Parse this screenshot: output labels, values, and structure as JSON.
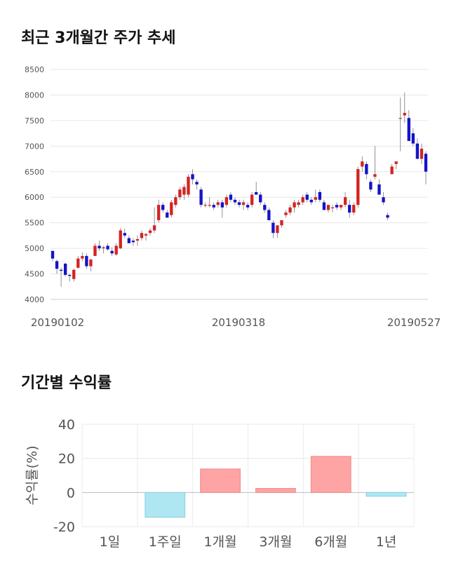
{
  "page": {
    "title_price_trend": "최근 3개월간 주가 추세",
    "title_returns": "기간별 수익률"
  },
  "colors": {
    "up": "#d42424",
    "down": "#1414c8",
    "positive": "#ffa4a4",
    "negative": "#aee6f2"
  },
  "chart_data": [
    {
      "type": "candlestick",
      "ylim": [
        4000,
        8500
      ],
      "yticks": [
        4000,
        4500,
        5000,
        5500,
        6000,
        6500,
        7000,
        7500,
        8000,
        8500
      ],
      "xtick_labels": [
        "20190102",
        "20190318",
        "20190527"
      ],
      "grid": true,
      "ohlc": [
        [
          4950,
          4950,
          4750,
          4800
        ],
        [
          4750,
          4780,
          4500,
          4600
        ],
        [
          4580,
          4620,
          4250,
          4560
        ],
        [
          4700,
          4720,
          4450,
          4480
        ],
        [
          4480,
          4500,
          4350,
          4460
        ],
        [
          4400,
          4600,
          4350,
          4580
        ],
        [
          4620,
          4850,
          4600,
          4800
        ],
        [
          4800,
          4920,
          4750,
          4850
        ],
        [
          4850,
          4900,
          4600,
          4650
        ],
        [
          4650,
          4800,
          4550,
          4780
        ],
        [
          4850,
          5100,
          4850,
          5050
        ],
        [
          5050,
          5150,
          4950,
          5000
        ],
        [
          5000,
          5050,
          4900,
          5020
        ],
        [
          5050,
          5100,
          4950,
          4980
        ],
        [
          4950,
          5020,
          4850,
          4900
        ],
        [
          4880,
          5100,
          4850,
          5050
        ],
        [
          5000,
          5400,
          4980,
          5350
        ],
        [
          5300,
          5380,
          5200,
          5250
        ],
        [
          5200,
          5250,
          5100,
          5100
        ],
        [
          5150,
          5200,
          5050,
          5120
        ],
        [
          5150,
          5250,
          5050,
          5180
        ],
        [
          5200,
          5350,
          5150,
          5300
        ],
        [
          5250,
          5300,
          5150,
          5280
        ],
        [
          5300,
          5400,
          5250,
          5350
        ],
        [
          5350,
          5800,
          5300,
          5450
        ],
        [
          5550,
          5950,
          5500,
          5850
        ],
        [
          5850,
          5900,
          5700,
          5750
        ],
        [
          5700,
          5750,
          5600,
          5600
        ],
        [
          5650,
          5950,
          5600,
          5900
        ],
        [
          5850,
          6050,
          5800,
          6000
        ],
        [
          6000,
          6200,
          5950,
          6150
        ],
        [
          6050,
          6250,
          5950,
          6200
        ],
        [
          6050,
          6450,
          6000,
          6400
        ],
        [
          6450,
          6550,
          6250,
          6350
        ],
        [
          6300,
          6350,
          6150,
          6250
        ],
        [
          6150,
          6200,
          5800,
          5850
        ],
        [
          5850,
          5900,
          5800,
          5850
        ],
        [
          5850,
          6000,
          5800,
          5850
        ],
        [
          5850,
          5900,
          5750,
          5800
        ],
        [
          5850,
          5950,
          5800,
          5900
        ],
        [
          5900,
          5950,
          5600,
          5800
        ],
        [
          5850,
          6050,
          5800,
          6000
        ],
        [
          6050,
          6100,
          5900,
          5950
        ],
        [
          5950,
          6000,
          5850,
          5900
        ],
        [
          5900,
          5950,
          5800,
          5850
        ],
        [
          5850,
          5950,
          5750,
          5900
        ],
        [
          5850,
          5900,
          5750,
          5800
        ],
        [
          5850,
          6100,
          5800,
          6050
        ],
        [
          6100,
          6300,
          6050,
          6050
        ],
        [
          6050,
          6100,
          5850,
          5900
        ],
        [
          5850,
          5900,
          5700,
          5750
        ],
        [
          5750,
          5800,
          5550,
          5550
        ],
        [
          5500,
          5550,
          5200,
          5300
        ],
        [
          5300,
          5450,
          5200,
          5450
        ],
        [
          5450,
          5550,
          5400,
          5550
        ],
        [
          5650,
          5750,
          5600,
          5700
        ],
        [
          5700,
          5850,
          5650,
          5800
        ],
        [
          5800,
          5950,
          5700,
          5900
        ],
        [
          5850,
          5950,
          5800,
          5900
        ],
        [
          5900,
          6050,
          5850,
          6000
        ],
        [
          6050,
          6100,
          5900,
          5950
        ],
        [
          5950,
          6000,
          5850,
          5900
        ],
        [
          5950,
          6150,
          5900,
          6000
        ],
        [
          6100,
          6150,
          5900,
          5950
        ],
        [
          5900,
          5950,
          5750,
          5750
        ],
        [
          5750,
          5850,
          5700,
          5850
        ],
        [
          5800,
          5850,
          5700,
          5800
        ],
        [
          5850,
          5900,
          5750,
          5800
        ],
        [
          5800,
          5850,
          5750,
          5850
        ],
        [
          5850,
          6100,
          5800,
          6000
        ],
        [
          5850,
          5950,
          5600,
          5700
        ],
        [
          5700,
          5900,
          5650,
          5850
        ],
        [
          5850,
          6600,
          5800,
          6550
        ],
        [
          6600,
          6800,
          6500,
          6700
        ],
        [
          6650,
          6700,
          6350,
          6450
        ],
        [
          6300,
          6350,
          6100,
          6150
        ],
        [
          6400,
          7000,
          6350,
          6450
        ],
        [
          6250,
          6350,
          6050,
          6050
        ],
        [
          6000,
          6100,
          5850,
          5900
        ],
        [
          5650,
          5700,
          5550,
          5600
        ],
        [
          6450,
          6650,
          6450,
          6600
        ],
        [
          6650,
          6700,
          6550,
          6700
        ],
        [
          7550,
          7950,
          6900,
          7550
        ],
        [
          7600,
          8050,
          7450,
          7650
        ],
        [
          7550,
          7700,
          7100,
          7100
        ],
        [
          7250,
          7350,
          7000,
          7050
        ],
        [
          7050,
          7150,
          6750,
          6750
        ],
        [
          6750,
          7050,
          6650,
          6950
        ],
        [
          6850,
          6900,
          6250,
          6500
        ]
      ]
    },
    {
      "type": "bar",
      "ylabel": "수익률(%)",
      "ylim": [
        -20,
        40
      ],
      "yticks": [
        -20,
        0,
        20,
        40
      ],
      "grid": true,
      "categories": [
        "1일",
        "1주일",
        "1개월",
        "3개월",
        "6개월",
        "1년"
      ],
      "values": [
        0,
        -14.5,
        13.8,
        2.4,
        21.2,
        -2.2
      ]
    }
  ]
}
